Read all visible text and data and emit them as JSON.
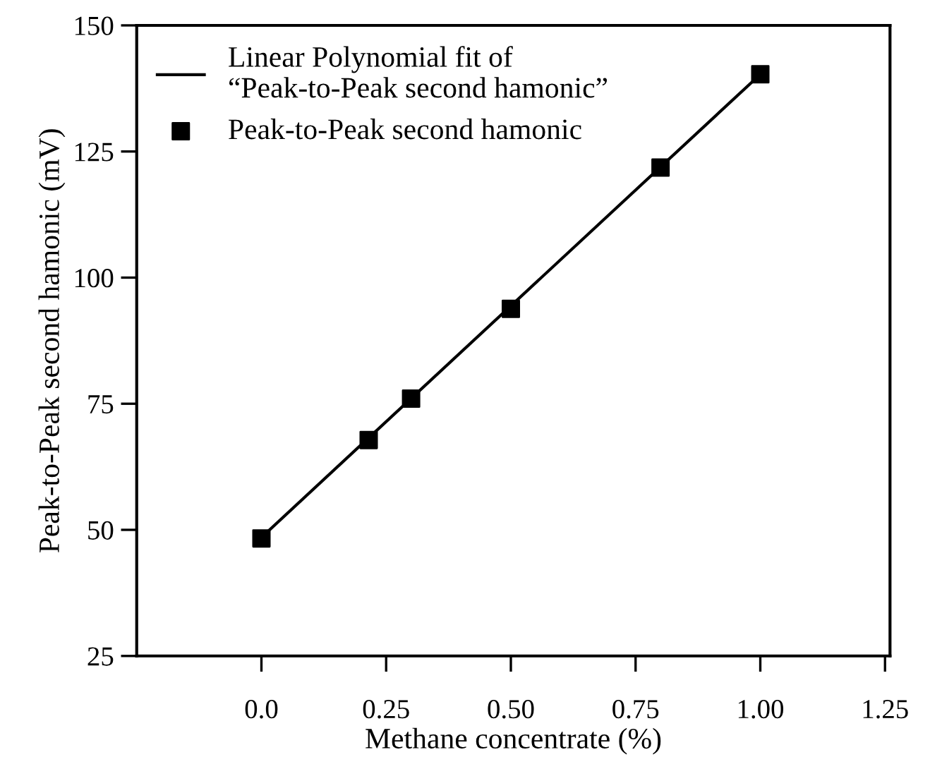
{
  "chart_data": {
    "type": "scatter",
    "xlabel": "Methane concentrate (%)",
    "ylabel": "Peak-to-Peak second hamonic (mV)",
    "xlim": [
      -0.25,
      1.26
    ],
    "ylim": [
      25,
      150
    ],
    "xticks": [
      {
        "value": 0,
        "label": "0.0"
      },
      0.25,
      {
        "value": 0.5,
        "label": "0.50"
      },
      0.75,
      {
        "value": 1,
        "label": "1.00"
      },
      1.25
    ],
    "yticks": [
      25,
      50,
      75,
      100,
      125,
      150
    ],
    "grid": false,
    "legend": "top left",
    "marker": "square",
    "series": [
      {
        "name": "Linear Polynomial fit of\n“Peak-to-Peak second hamonic”",
        "type": "line",
        "color": "#000000",
        "x": [
          0,
          1
        ],
        "values": [
          48.5,
          140.3
        ],
        "marker": "none",
        "line_style": "solid"
      },
      {
        "name": "Peak-to-Peak second hamonic",
        "color": "#000000",
        "x": [
          0,
          0.215,
          0.3,
          0.5,
          0.8,
          1.0
        ],
        "values": [
          48.3,
          67.8,
          76.0,
          93.8,
          121.8,
          140.3
        ]
      }
    ]
  }
}
